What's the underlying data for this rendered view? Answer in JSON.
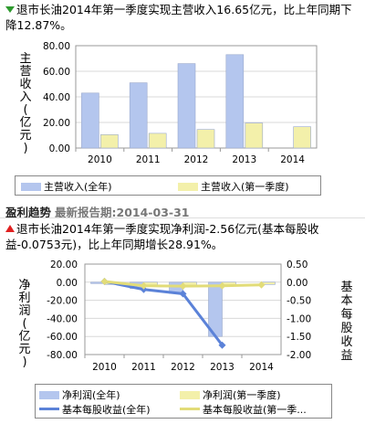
{
  "headline1": {
    "direction": "down",
    "color": "#2e9a2e",
    "text": "退市长油2014年第一季度实现主营收入16.65亿元，比上年同期下降12.87%。"
  },
  "section": {
    "title": "盈利趋势",
    "report_date_label": "最新报告期:2014-03-31"
  },
  "headline2": {
    "direction": "up",
    "color": "#e02020",
    "text": "退市长油2014年第一季度实现净利润-2.56亿元(基本每股收益-0.0753元)，比上年同期增长28.91%。"
  },
  "chart_data": [
    {
      "type": "bar",
      "categories": [
        "2010",
        "2011",
        "2012",
        "2013",
        "2014"
      ],
      "ylabel": "主营收入(亿元)",
      "ylim": [
        0,
        80
      ],
      "yticks": [
        "0.00",
        "20.00",
        "40.00",
        "60.00",
        "80.00"
      ],
      "grid": true,
      "series": [
        {
          "name": "主营收入(全年)",
          "color": "#b4c6ee",
          "values": [
            43,
            51,
            66,
            73,
            null
          ]
        },
        {
          "name": "主营收入(第一季度)",
          "color": "#f3f0aa",
          "values": [
            10.5,
            11.5,
            14.5,
            19.5,
            16.65
          ]
        }
      ]
    },
    {
      "type": "bar+line",
      "categories": [
        "2010",
        "2011",
        "2012",
        "2013",
        "2014"
      ],
      "ylabel": "净利润(亿元)",
      "ylabel_right": "基本每股收益",
      "ylim": [
        -80,
        20
      ],
      "yticks": [
        "20.00",
        "0.00",
        "-20.00",
        "-40.00",
        "-60.00",
        "-80.00"
      ],
      "ylim_right": [
        -2.0,
        0.5
      ],
      "yticks_right": [
        "0.50",
        "0.00",
        "-0.50",
        "-1.00",
        "-1.50",
        "-2.00"
      ],
      "grid": true,
      "series": [
        {
          "name": "净利润(全年)",
          "kind": "bar",
          "axis": "left",
          "color": "#b4c6ee",
          "values": [
            -1.5,
            -7,
            -12.5,
            -60,
            null
          ]
        },
        {
          "name": "净利润(第一季度)",
          "kind": "bar",
          "axis": "left",
          "color": "#f3f0aa",
          "values": [
            -2.5,
            -3,
            -3.5,
            -3.5,
            -2.56
          ]
        },
        {
          "name": "基本每股收益(全年)",
          "kind": "line",
          "axis": "right",
          "color": "#5b82d8",
          "values": [
            0.02,
            -0.2,
            -0.32,
            -1.74,
            null
          ]
        },
        {
          "name": "基本每股收益(第一季...",
          "kind": "line",
          "axis": "right",
          "color": "#e2dc78",
          "values": [
            0.02,
            -0.1,
            -0.11,
            -0.1,
            -0.0753
          ]
        }
      ]
    }
  ]
}
